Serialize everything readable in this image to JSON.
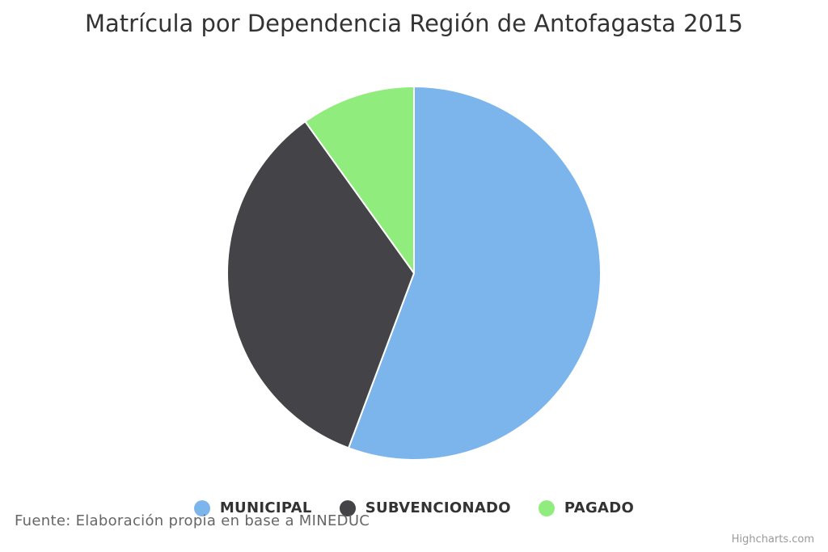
{
  "chart_data": {
    "type": "pie",
    "title": "Matrícula por Dependencia Región de Antofagasta 2015",
    "series": [
      {
        "name": "MUNICIPAL",
        "value": 55.7,
        "color": "#7cb5ec"
      },
      {
        "name": "SUBVENCIONADO",
        "value": 34.4,
        "color": "#434348"
      },
      {
        "name": "PAGADO",
        "value": 9.9,
        "color": "#90ed7d"
      }
    ],
    "legend_position": "bottom-center"
  },
  "source_note": "Fuente: Elaboración propia en base a MINEDUC",
  "credits": "Highcharts.com"
}
